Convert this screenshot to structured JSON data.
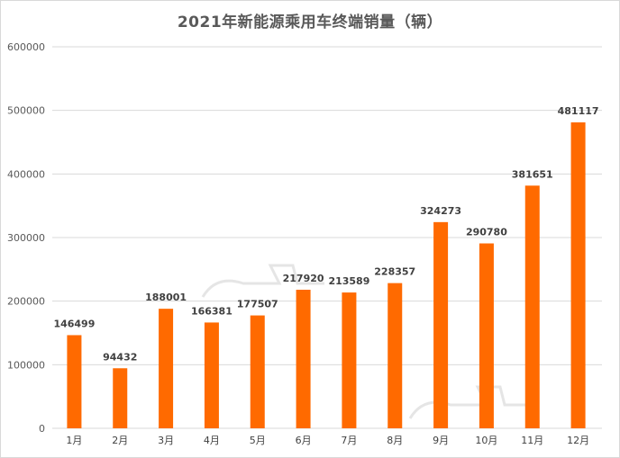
{
  "chart_data": {
    "type": "bar",
    "title": "2021年新能源乘用车终端销量（辆）",
    "xlabel": "",
    "ylabel": "",
    "categories": [
      "1月",
      "2月",
      "3月",
      "4月",
      "5月",
      "6月",
      "7月",
      "8月",
      "9月",
      "10月",
      "11月",
      "12月"
    ],
    "values": [
      146499,
      94432,
      188001,
      166381,
      177507,
      217920,
      213589,
      228357,
      324273,
      290780,
      381651,
      481117
    ],
    "ylim": [
      0,
      600000
    ],
    "yticks": [
      "0",
      "100000",
      "200000",
      "300000",
      "400000",
      "500000",
      "600000"
    ],
    "grid": true,
    "legend": "none",
    "bar_color": "#FF6A00"
  }
}
